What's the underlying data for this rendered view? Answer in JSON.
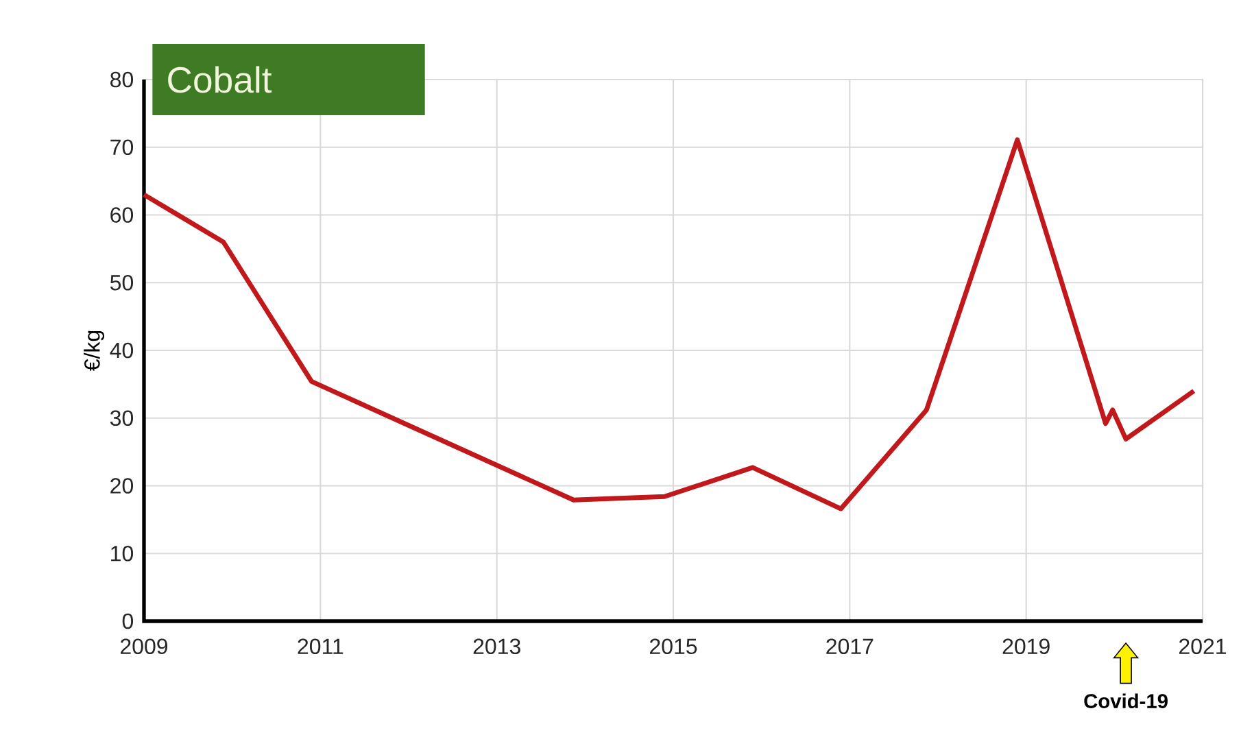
{
  "chart_data": {
    "type": "line",
    "title": "Cobalt",
    "ylabel": "€/kg",
    "x": [
      2009,
      2009.9,
      2010.9,
      2013.87,
      2014.9,
      2015.9,
      2016.9,
      2017.87,
      2018.9,
      2019.9,
      2019.98,
      2020.13,
      2020.9
    ],
    "values": [
      63,
      56,
      35.4,
      17.9,
      18.4,
      22.7,
      16.6,
      31.2,
      71.1,
      29.2,
      31.2,
      26.9,
      34
    ],
    "color": "#c0181b",
    "xlim": [
      2009,
      2021
    ],
    "ylim": [
      0,
      80
    ],
    "xticks": [
      2009,
      2011,
      2013,
      2015,
      2017,
      2019,
      2021
    ],
    "yticks": [
      0,
      10,
      20,
      30,
      40,
      50,
      60,
      70,
      80
    ],
    "grid": true,
    "annotations": [
      "Covid-19"
    ]
  }
}
